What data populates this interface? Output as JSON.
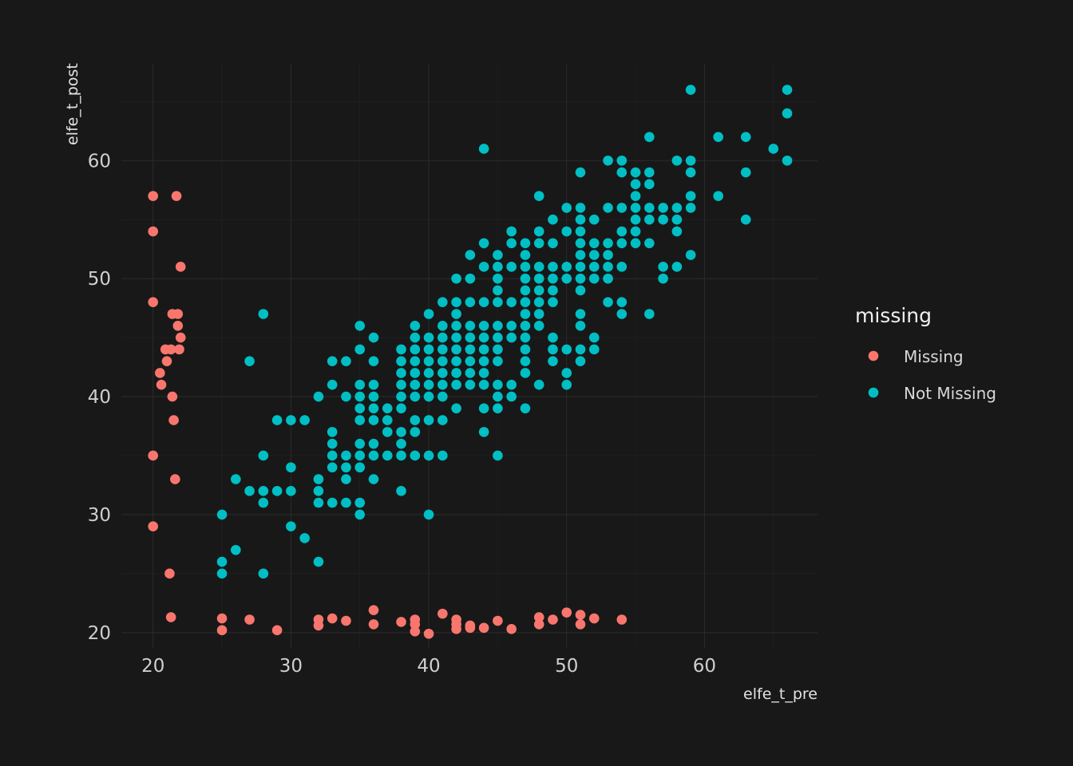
{
  "chart_data": {
    "type": "scatter",
    "xlabel": "elfe_t_pre",
    "ylabel": "elfe_t_post",
    "xlim": [
      17.7,
      68.2
    ],
    "ylim": [
      18.7,
      68.2
    ],
    "x_ticks": [
      20,
      30,
      40,
      50,
      60
    ],
    "y_ticks": [
      20,
      30,
      40,
      50,
      60
    ],
    "grid": true,
    "legend": {
      "title": "missing",
      "position": "right",
      "entries": [
        {
          "label": "Missing",
          "color": "#f8766d"
        },
        {
          "label": "Not Missing",
          "color": "#00bfc4"
        }
      ]
    },
    "series": [
      {
        "name": "Missing",
        "color": "#f8766d",
        "points": [
          [
            20,
            57
          ],
          [
            21.7,
            57
          ],
          [
            20,
            54
          ],
          [
            22,
            51
          ],
          [
            20,
            48
          ],
          [
            21.4,
            47
          ],
          [
            21.8,
            47
          ],
          [
            21.8,
            46
          ],
          [
            22,
            45
          ],
          [
            20.9,
            44
          ],
          [
            21.3,
            44
          ],
          [
            21.9,
            44
          ],
          [
            21,
            43
          ],
          [
            20.5,
            42
          ],
          [
            20.6,
            41
          ],
          [
            21.4,
            40
          ],
          [
            21.5,
            38
          ],
          [
            20,
            35
          ],
          [
            21.6,
            33
          ],
          [
            20,
            29
          ],
          [
            21.2,
            25
          ],
          [
            21.3,
            21.3
          ],
          [
            25,
            21.2
          ],
          [
            25,
            20.2
          ],
          [
            27,
            21.1
          ],
          [
            29,
            20.2
          ],
          [
            32,
            21.1
          ],
          [
            32,
            20.6
          ],
          [
            33,
            21.2
          ],
          [
            34,
            21
          ],
          [
            36,
            21.9
          ],
          [
            36,
            20.7
          ],
          [
            38,
            20.9
          ],
          [
            39,
            21.1
          ],
          [
            39,
            20.7
          ],
          [
            39,
            20.1
          ],
          [
            40,
            19.9
          ],
          [
            41,
            21.6
          ],
          [
            42,
            21.1
          ],
          [
            42,
            20.7
          ],
          [
            42,
            20.3
          ],
          [
            43,
            20.6
          ],
          [
            43,
            20.4
          ],
          [
            44,
            20.4
          ],
          [
            45,
            21
          ],
          [
            46,
            20.3
          ],
          [
            48,
            21.3
          ],
          [
            48,
            20.7
          ],
          [
            49,
            21.1
          ],
          [
            50,
            21.7
          ],
          [
            51,
            21.5
          ],
          [
            51,
            20.7
          ],
          [
            52,
            21.2
          ],
          [
            54,
            21.1
          ]
        ]
      },
      {
        "name": "Not Missing",
        "color": "#00bfc4",
        "points": [
          [
            25,
            30
          ],
          [
            25,
            26
          ],
          [
            25,
            25
          ],
          [
            26,
            33
          ],
          [
            26,
            27
          ],
          [
            27,
            43
          ],
          [
            27,
            32
          ],
          [
            28,
            47
          ],
          [
            28,
            35
          ],
          [
            28,
            32
          ],
          [
            28,
            31
          ],
          [
            28,
            25
          ],
          [
            29,
            38
          ],
          [
            29,
            32
          ],
          [
            30,
            38
          ],
          [
            30,
            34
          ],
          [
            30,
            32
          ],
          [
            30,
            29
          ],
          [
            31,
            38
          ],
          [
            31,
            28
          ],
          [
            32,
            40
          ],
          [
            32,
            33
          ],
          [
            32,
            32
          ],
          [
            32,
            31
          ],
          [
            32,
            26
          ],
          [
            33,
            43
          ],
          [
            33,
            41
          ],
          [
            33,
            37
          ],
          [
            33,
            36
          ],
          [
            33,
            35
          ],
          [
            33,
            34
          ],
          [
            33,
            31
          ],
          [
            34,
            43
          ],
          [
            34,
            40
          ],
          [
            34,
            35
          ],
          [
            34,
            34
          ],
          [
            34,
            33
          ],
          [
            34,
            31
          ],
          [
            35,
            46
          ],
          [
            35,
            44
          ],
          [
            35,
            41
          ],
          [
            35,
            40
          ],
          [
            35,
            39
          ],
          [
            35,
            38
          ],
          [
            35,
            36
          ],
          [
            35,
            35
          ],
          [
            35,
            34
          ],
          [
            35,
            31
          ],
          [
            35,
            30
          ],
          [
            36,
            45
          ],
          [
            36,
            43
          ],
          [
            36,
            41
          ],
          [
            36,
            40
          ],
          [
            36,
            39
          ],
          [
            36,
            38
          ],
          [
            36,
            36
          ],
          [
            36,
            35
          ],
          [
            36,
            33
          ],
          [
            37,
            39
          ],
          [
            37,
            38
          ],
          [
            37,
            37
          ],
          [
            37,
            35
          ],
          [
            38,
            44
          ],
          [
            38,
            43
          ],
          [
            38,
            42
          ],
          [
            38,
            41
          ],
          [
            38,
            40
          ],
          [
            38,
            39
          ],
          [
            38,
            37
          ],
          [
            38,
            36
          ],
          [
            38,
            35
          ],
          [
            38,
            32
          ],
          [
            39,
            46
          ],
          [
            39,
            45
          ],
          [
            39,
            44
          ],
          [
            39,
            43
          ],
          [
            39,
            42
          ],
          [
            39,
            41
          ],
          [
            39,
            40
          ],
          [
            39,
            38
          ],
          [
            39,
            37
          ],
          [
            39,
            35
          ],
          [
            40,
            47
          ],
          [
            40,
            45
          ],
          [
            40,
            44
          ],
          [
            40,
            43
          ],
          [
            40,
            42
          ],
          [
            40,
            41
          ],
          [
            40,
            40
          ],
          [
            40,
            38
          ],
          [
            40,
            35
          ],
          [
            40,
            30
          ],
          [
            41,
            48
          ],
          [
            41,
            46
          ],
          [
            41,
            45
          ],
          [
            41,
            44
          ],
          [
            41,
            43
          ],
          [
            41,
            42
          ],
          [
            41,
            41
          ],
          [
            41,
            40
          ],
          [
            41,
            38
          ],
          [
            41,
            35
          ],
          [
            42,
            50
          ],
          [
            42,
            48
          ],
          [
            42,
            47
          ],
          [
            42,
            46
          ],
          [
            42,
            45
          ],
          [
            42,
            44
          ],
          [
            42,
            43
          ],
          [
            42,
            42
          ],
          [
            42,
            41
          ],
          [
            42,
            39
          ],
          [
            43,
            52
          ],
          [
            43,
            50
          ],
          [
            43,
            48
          ],
          [
            43,
            46
          ],
          [
            43,
            45
          ],
          [
            43,
            44
          ],
          [
            43,
            43
          ],
          [
            43,
            42
          ],
          [
            43,
            41
          ],
          [
            44,
            61
          ],
          [
            44,
            53
          ],
          [
            44,
            51
          ],
          [
            44,
            48
          ],
          [
            44,
            46
          ],
          [
            44,
            45
          ],
          [
            44,
            44
          ],
          [
            44,
            43
          ],
          [
            44,
            42
          ],
          [
            44,
            41
          ],
          [
            44,
            39
          ],
          [
            44,
            37
          ],
          [
            45,
            52
          ],
          [
            45,
            51
          ],
          [
            45,
            50
          ],
          [
            45,
            49
          ],
          [
            45,
            48
          ],
          [
            45,
            46
          ],
          [
            45,
            45
          ],
          [
            45,
            44
          ],
          [
            45,
            43
          ],
          [
            45,
            41
          ],
          [
            45,
            40
          ],
          [
            45,
            39
          ],
          [
            45,
            35
          ],
          [
            46,
            54
          ],
          [
            46,
            53
          ],
          [
            46,
            51
          ],
          [
            46,
            48
          ],
          [
            46,
            46
          ],
          [
            46,
            45
          ],
          [
            46,
            41
          ],
          [
            46,
            40
          ],
          [
            47,
            53
          ],
          [
            47,
            52
          ],
          [
            47,
            51
          ],
          [
            47,
            50
          ],
          [
            47,
            49
          ],
          [
            47,
            48
          ],
          [
            47,
            47
          ],
          [
            47,
            46
          ],
          [
            47,
            45
          ],
          [
            47,
            44
          ],
          [
            47,
            43
          ],
          [
            47,
            42
          ],
          [
            47,
            39
          ],
          [
            48,
            57
          ],
          [
            48,
            54
          ],
          [
            48,
            53
          ],
          [
            48,
            51
          ],
          [
            48,
            50
          ],
          [
            48,
            49
          ],
          [
            48,
            48
          ],
          [
            48,
            47
          ],
          [
            48,
            46
          ],
          [
            48,
            41
          ],
          [
            49,
            55
          ],
          [
            49,
            53
          ],
          [
            49,
            51
          ],
          [
            49,
            50
          ],
          [
            49,
            49
          ],
          [
            49,
            48
          ],
          [
            49,
            45
          ],
          [
            49,
            44
          ],
          [
            49,
            43
          ],
          [
            50,
            56
          ],
          [
            50,
            54
          ],
          [
            50,
            51
          ],
          [
            50,
            50
          ],
          [
            50,
            44
          ],
          [
            50,
            42
          ],
          [
            50,
            41
          ],
          [
            51,
            59
          ],
          [
            51,
            56
          ],
          [
            51,
            55
          ],
          [
            51,
            54
          ],
          [
            51,
            53
          ],
          [
            51,
            52
          ],
          [
            51,
            51
          ],
          [
            51,
            50
          ],
          [
            51,
            49
          ],
          [
            51,
            47
          ],
          [
            51,
            46
          ],
          [
            51,
            44
          ],
          [
            51,
            43
          ],
          [
            52,
            55
          ],
          [
            52,
            53
          ],
          [
            52,
            52
          ],
          [
            52,
            51
          ],
          [
            52,
            50
          ],
          [
            52,
            45
          ],
          [
            52,
            44
          ],
          [
            53,
            60
          ],
          [
            53,
            56
          ],
          [
            53,
            53
          ],
          [
            53,
            52
          ],
          [
            53,
            51
          ],
          [
            53,
            50
          ],
          [
            53,
            48
          ],
          [
            54,
            60
          ],
          [
            54,
            59
          ],
          [
            54,
            56
          ],
          [
            54,
            54
          ],
          [
            54,
            53
          ],
          [
            54,
            51
          ],
          [
            54,
            48
          ],
          [
            54,
            47
          ],
          [
            55,
            59
          ],
          [
            55,
            58
          ],
          [
            55,
            57
          ],
          [
            55,
            56
          ],
          [
            55,
            55
          ],
          [
            55,
            54
          ],
          [
            55,
            53
          ],
          [
            56,
            62
          ],
          [
            56,
            59
          ],
          [
            56,
            58
          ],
          [
            56,
            56
          ],
          [
            56,
            55
          ],
          [
            56,
            53
          ],
          [
            56,
            47
          ],
          [
            57,
            56
          ],
          [
            57,
            55
          ],
          [
            57,
            51
          ],
          [
            57,
            50
          ],
          [
            58,
            60
          ],
          [
            58,
            56
          ],
          [
            58,
            55
          ],
          [
            58,
            54
          ],
          [
            58,
            51
          ],
          [
            59,
            66
          ],
          [
            59,
            60
          ],
          [
            59,
            59
          ],
          [
            59,
            57
          ],
          [
            59,
            56
          ],
          [
            59,
            52
          ],
          [
            61,
            62
          ],
          [
            61,
            57
          ],
          [
            63,
            62
          ],
          [
            63,
            59
          ],
          [
            63,
            55
          ],
          [
            65,
            61
          ],
          [
            66,
            66
          ],
          [
            66,
            64
          ],
          [
            66,
            60
          ]
        ]
      }
    ]
  }
}
